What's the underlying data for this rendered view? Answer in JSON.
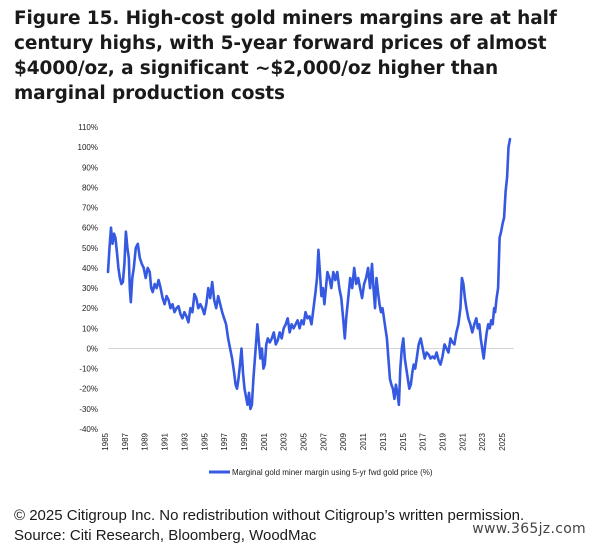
{
  "figure": {
    "title": "Figure 15. High-cost gold miners margins are at half century highs, with 5-year forward prices of almost $4000/oz, a significant ~$2,000/oz higher than marginal production costs"
  },
  "chart_data": {
    "type": "line",
    "title": "",
    "xlabel": "",
    "ylabel": "",
    "ylim": [
      -40,
      110
    ],
    "xlim": [
      1985,
      2025.9
    ],
    "x_ticks": [
      1985,
      1987,
      1989,
      1991,
      1993,
      1995,
      1997,
      1999,
      2001,
      2003,
      2005,
      2007,
      2009,
      2011,
      2013,
      2015,
      2017,
      2019,
      2021,
      2023,
      2025
    ],
    "y_ticks": [
      -40,
      -30,
      -20,
      -10,
      0,
      10,
      20,
      30,
      40,
      50,
      60,
      70,
      80,
      90,
      100,
      110
    ],
    "y_tick_labels": [
      "-40%",
      "-30%",
      "-20%",
      "-10%",
      "0%",
      "10%",
      "20%",
      "30%",
      "40%",
      "50%",
      "60%",
      "70%",
      "80%",
      "90%",
      "100%",
      "110%"
    ],
    "grid": false,
    "legend_position": "bottom-center",
    "color": "#3559e0",
    "series": [
      {
        "name": "Marginal gold miner margin using 5-yr fwd gold price (%)",
        "points": [
          [
            1985.0,
            38
          ],
          [
            1985.15,
            50
          ],
          [
            1985.3,
            60
          ],
          [
            1985.45,
            52
          ],
          [
            1985.6,
            57
          ],
          [
            1985.75,
            55
          ],
          [
            1985.9,
            48
          ],
          [
            1986.05,
            40
          ],
          [
            1986.2,
            35
          ],
          [
            1986.35,
            32
          ],
          [
            1986.5,
            33
          ],
          [
            1986.65,
            42
          ],
          [
            1986.8,
            58
          ],
          [
            1986.95,
            50
          ],
          [
            1987.1,
            45
          ],
          [
            1987.2,
            30
          ],
          [
            1987.3,
            23
          ],
          [
            1987.45,
            35
          ],
          [
            1987.6,
            40
          ],
          [
            1987.8,
            50
          ],
          [
            1988.0,
            52
          ],
          [
            1988.2,
            45
          ],
          [
            1988.4,
            42
          ],
          [
            1988.6,
            40
          ],
          [
            1988.8,
            35
          ],
          [
            1989.0,
            40
          ],
          [
            1989.2,
            38
          ],
          [
            1989.35,
            30
          ],
          [
            1989.5,
            28
          ],
          [
            1989.7,
            32
          ],
          [
            1989.9,
            30
          ],
          [
            1990.1,
            34
          ],
          [
            1990.3,
            30
          ],
          [
            1990.5,
            25
          ],
          [
            1990.7,
            22
          ],
          [
            1990.9,
            26
          ],
          [
            1991.1,
            24
          ],
          [
            1991.3,
            20
          ],
          [
            1991.5,
            22
          ],
          [
            1991.7,
            18
          ],
          [
            1991.9,
            20
          ],
          [
            1992.1,
            21
          ],
          [
            1992.3,
            17
          ],
          [
            1992.5,
            15
          ],
          [
            1992.7,
            18
          ],
          [
            1992.9,
            16
          ],
          [
            1993.1,
            13
          ],
          [
            1993.3,
            20
          ],
          [
            1993.5,
            18
          ],
          [
            1993.7,
            27
          ],
          [
            1993.9,
            25
          ],
          [
            1994.1,
            20
          ],
          [
            1994.3,
            22
          ],
          [
            1994.5,
            20
          ],
          [
            1994.7,
            17
          ],
          [
            1994.9,
            22
          ],
          [
            1995.1,
            30
          ],
          [
            1995.3,
            25
          ],
          [
            1995.5,
            33
          ],
          [
            1995.7,
            24
          ],
          [
            1995.9,
            20
          ],
          [
            1996.1,
            26
          ],
          [
            1996.3,
            22
          ],
          [
            1996.5,
            18
          ],
          [
            1996.7,
            15
          ],
          [
            1996.9,
            12
          ],
          [
            1997.1,
            5
          ],
          [
            1997.3,
            0
          ],
          [
            1997.5,
            -5
          ],
          [
            1997.7,
            -12
          ],
          [
            1997.85,
            -18
          ],
          [
            1998.0,
            -20
          ],
          [
            1998.15,
            -15
          ],
          [
            1998.3,
            -8
          ],
          [
            1998.45,
            0
          ],
          [
            1998.6,
            -12
          ],
          [
            1998.75,
            -20
          ],
          [
            1998.9,
            -24
          ],
          [
            1999.05,
            -28
          ],
          [
            1999.2,
            -22
          ],
          [
            1999.35,
            -30
          ],
          [
            1999.5,
            -28
          ],
          [
            1999.65,
            -15
          ],
          [
            1999.8,
            -5
          ],
          [
            1999.95,
            5
          ],
          [
            2000.05,
            12
          ],
          [
            2000.2,
            3
          ],
          [
            2000.35,
            -5
          ],
          [
            2000.5,
            0
          ],
          [
            2000.65,
            -10
          ],
          [
            2000.8,
            -8
          ],
          [
            2000.95,
            2
          ],
          [
            2001.1,
            5
          ],
          [
            2001.3,
            3
          ],
          [
            2001.5,
            5
          ],
          [
            2001.7,
            8
          ],
          [
            2001.9,
            2
          ],
          [
            2002.1,
            4
          ],
          [
            2002.3,
            8
          ],
          [
            2002.5,
            5
          ],
          [
            2002.7,
            10
          ],
          [
            2002.9,
            12
          ],
          [
            2003.1,
            15
          ],
          [
            2003.3,
            8
          ],
          [
            2003.5,
            12
          ],
          [
            2003.7,
            10
          ],
          [
            2003.9,
            12
          ],
          [
            2004.1,
            14
          ],
          [
            2004.3,
            10
          ],
          [
            2004.5,
            14
          ],
          [
            2004.7,
            12
          ],
          [
            2004.9,
            18
          ],
          [
            2005.1,
            15
          ],
          [
            2005.3,
            16
          ],
          [
            2005.5,
            12
          ],
          [
            2005.7,
            20
          ],
          [
            2005.9,
            28
          ],
          [
            2006.05,
            35
          ],
          [
            2006.2,
            49
          ],
          [
            2006.35,
            38
          ],
          [
            2006.5,
            26
          ],
          [
            2006.65,
            30
          ],
          [
            2006.8,
            22
          ],
          [
            2006.95,
            30
          ],
          [
            2007.1,
            38
          ],
          [
            2007.3,
            35
          ],
          [
            2007.5,
            30
          ],
          [
            2007.7,
            38
          ],
          [
            2007.9,
            34
          ],
          [
            2008.1,
            38
          ],
          [
            2008.3,
            30
          ],
          [
            2008.5,
            25
          ],
          [
            2008.7,
            14
          ],
          [
            2008.85,
            5
          ],
          [
            2009.0,
            15
          ],
          [
            2009.2,
            25
          ],
          [
            2009.4,
            35
          ],
          [
            2009.6,
            30
          ],
          [
            2009.8,
            40
          ],
          [
            2010.0,
            32
          ],
          [
            2010.2,
            35
          ],
          [
            2010.4,
            30
          ],
          [
            2010.6,
            25
          ],
          [
            2010.8,
            32
          ],
          [
            2011.0,
            35
          ],
          [
            2011.2,
            40
          ],
          [
            2011.4,
            30
          ],
          [
            2011.6,
            42
          ],
          [
            2011.75,
            30
          ],
          [
            2011.9,
            20
          ],
          [
            2012.05,
            35
          ],
          [
            2012.2,
            28
          ],
          [
            2012.35,
            22
          ],
          [
            2012.5,
            18
          ],
          [
            2012.65,
            20
          ],
          [
            2012.8,
            15
          ],
          [
            2012.95,
            10
          ],
          [
            2013.1,
            5
          ],
          [
            2013.25,
            -5
          ],
          [
            2013.4,
            -15
          ],
          [
            2013.55,
            -18
          ],
          [
            2013.7,
            -20
          ],
          [
            2013.85,
            -25
          ],
          [
            2014.0,
            -18
          ],
          [
            2014.15,
            -22
          ],
          [
            2014.3,
            -28
          ],
          [
            2014.45,
            -10
          ],
          [
            2014.6,
            0
          ],
          [
            2014.75,
            5
          ],
          [
            2014.9,
            -5
          ],
          [
            2015.05,
            -10
          ],
          [
            2015.2,
            -15
          ],
          [
            2015.35,
            -20
          ],
          [
            2015.5,
            -18
          ],
          [
            2015.65,
            -12
          ],
          [
            2015.8,
            -8
          ],
          [
            2015.95,
            -10
          ],
          [
            2016.1,
            -5
          ],
          [
            2016.3,
            2
          ],
          [
            2016.5,
            5
          ],
          [
            2016.7,
            0
          ],
          [
            2016.9,
            -5
          ],
          [
            2017.1,
            -2
          ],
          [
            2017.3,
            -3
          ],
          [
            2017.5,
            -5
          ],
          [
            2017.7,
            -4
          ],
          [
            2017.9,
            -5
          ],
          [
            2018.1,
            -2
          ],
          [
            2018.3,
            -6
          ],
          [
            2018.5,
            -8
          ],
          [
            2018.7,
            -4
          ],
          [
            2018.9,
            2
          ],
          [
            2019.1,
            0
          ],
          [
            2019.3,
            -2
          ],
          [
            2019.5,
            5
          ],
          [
            2019.7,
            3
          ],
          [
            2019.9,
            2
          ],
          [
            2020.1,
            8
          ],
          [
            2020.3,
            12
          ],
          [
            2020.5,
            20
          ],
          [
            2020.65,
            35
          ],
          [
            2020.8,
            32
          ],
          [
            2020.95,
            25
          ],
          [
            2021.1,
            20
          ],
          [
            2021.3,
            15
          ],
          [
            2021.5,
            12
          ],
          [
            2021.7,
            8
          ],
          [
            2021.9,
            12
          ],
          [
            2022.1,
            15
          ],
          [
            2022.25,
            10
          ],
          [
            2022.4,
            12
          ],
          [
            2022.55,
            5
          ],
          [
            2022.7,
            0
          ],
          [
            2022.85,
            -5
          ],
          [
            2023.0,
            2
          ],
          [
            2023.15,
            8
          ],
          [
            2023.3,
            12
          ],
          [
            2023.45,
            10
          ],
          [
            2023.6,
            14
          ],
          [
            2023.75,
            12
          ],
          [
            2023.9,
            20
          ],
          [
            2024.0,
            18
          ],
          [
            2024.15,
            25
          ],
          [
            2024.3,
            30
          ],
          [
            2024.45,
            55
          ],
          [
            2024.6,
            58
          ],
          [
            2024.75,
            62
          ],
          [
            2024.9,
            65
          ],
          [
            2025.05,
            78
          ],
          [
            2025.2,
            85
          ],
          [
            2025.35,
            100
          ],
          [
            2025.5,
            104
          ]
        ]
      }
    ]
  },
  "footer": {
    "copyright": "© 2025 Citigroup Inc. No redistribution without Citigroup’s written permission.",
    "source": "Source: Citi Research, Bloomberg, WoodMac"
  },
  "watermark": "www.365jz.com"
}
